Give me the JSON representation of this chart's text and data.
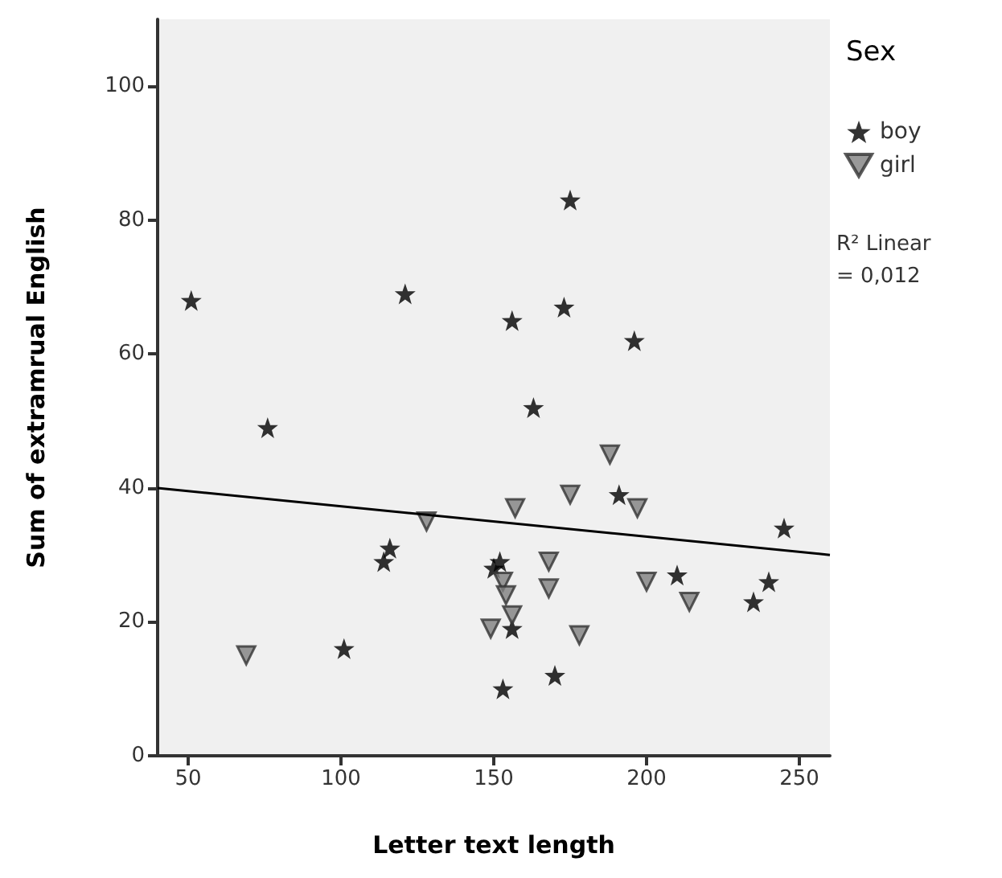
{
  "chart_data": {
    "type": "scatter",
    "xlabel": "Letter text length",
    "ylabel": "Sum of extramrual English",
    "legend_title": "Sex",
    "legend": "right",
    "grid": false,
    "xlim": [
      40,
      260
    ],
    "xticks": [
      50,
      100,
      150,
      200,
      250
    ],
    "ylim": [
      0,
      110
    ],
    "yticks": [
      0,
      20,
      40,
      60,
      80,
      100
    ],
    "annotations": [
      "R² Linear = 0,012"
    ],
    "series": [
      {
        "name": "boy",
        "color": "#000000",
        "marker": "star",
        "x": [
          51,
          76,
          101,
          114,
          116,
          121,
          150,
          152,
          153,
          156,
          156,
          163,
          170,
          173,
          175,
          191,
          196,
          210,
          235,
          240,
          245
        ],
        "values": [
          68,
          49,
          16,
          29,
          31,
          69,
          28,
          29,
          10,
          65,
          19,
          52,
          12,
          67,
          83,
          39,
          62,
          27,
          23,
          26,
          34
        ]
      },
      {
        "name": "girl",
        "color": "#808080",
        "marker": "triangle",
        "x": [
          69,
          128,
          149,
          153,
          154,
          156,
          157,
          168,
          168,
          175,
          178,
          188,
          197,
          200,
          214
        ],
        "values": [
          15,
          35,
          19,
          26,
          24,
          21,
          37,
          29,
          25,
          39,
          18,
          45,
          37,
          26,
          23
        ]
      },
      {
        "type": "line",
        "color": "#000000",
        "marker": "none",
        "x": [
          40,
          260
        ],
        "values": [
          40,
          30
        ]
      }
    ]
  }
}
